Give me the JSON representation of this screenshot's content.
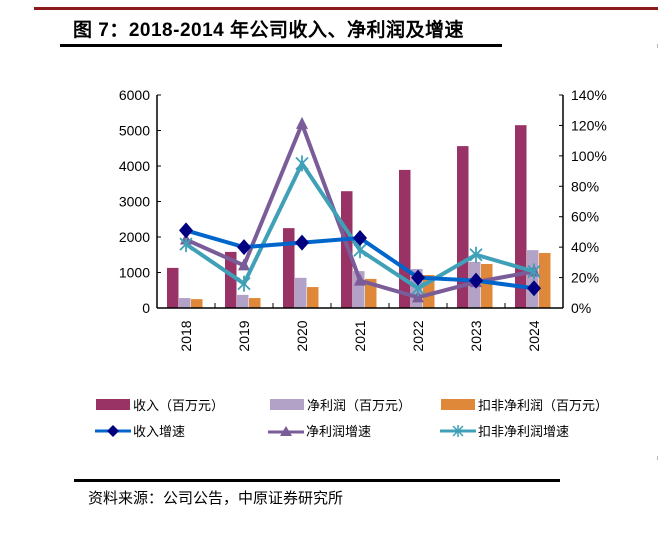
{
  "figure": {
    "title": "图 7：2018-2014 年公司收入、净利润及增速",
    "source": "资料来源：公司公告，中原证券研究所"
  },
  "colors": {
    "revenue": "#993366",
    "net_profit": "#b3a2c7",
    "deducted_net_profit": "#e0883a",
    "revenue_growth": "#0066cc",
    "revenue_growth_marker": "#000080",
    "net_profit_growth": "#7a5c99",
    "deducted_growth": "#3fa0b8",
    "top_rule": "#8b1a1a"
  },
  "chart_data": {
    "type": "bar",
    "combo": "bar+line, dual axis",
    "title": "2018-2014 年公司收入、净利润及增速",
    "categories": [
      "2018",
      "2019",
      "2020",
      "2021",
      "2022",
      "2023",
      "2024"
    ],
    "y_left": {
      "label": "",
      "ylim": [
        0,
        6000
      ],
      "ticks": [
        "0",
        "1000",
        "2000",
        "3000",
        "4000",
        "5000",
        "6000"
      ],
      "tick_values": [
        0,
        1000,
        2000,
        3000,
        4000,
        5000,
        6000
      ]
    },
    "y_right": {
      "label": "",
      "ylim": [
        0,
        140
      ],
      "unit": "%",
      "ticks": [
        "0%",
        "20%",
        "40%",
        "60%",
        "80%",
        "100%",
        "120%",
        "140%"
      ],
      "tick_values": [
        0,
        20,
        40,
        60,
        80,
        100,
        120,
        140
      ]
    },
    "grid": false,
    "legend_position": "bottom",
    "series": [
      {
        "name": "收入（百万元）",
        "type": "bar",
        "axis": "left",
        "color_key": "revenue",
        "values": [
          1130,
          1580,
          2250,
          3290,
          3890,
          4560,
          5150
        ]
      },
      {
        "name": "净利润（百万元）",
        "type": "bar",
        "axis": "left",
        "color_key": "net_profit",
        "values": [
          280,
          370,
          850,
          1040,
          1100,
          1300,
          1630
        ]
      },
      {
        "name": "扣非净利润（百万元）",
        "type": "bar",
        "axis": "left",
        "color_key": "deducted_net_profit",
        "values": [
          250,
          280,
          590,
          820,
          930,
          1240,
          1550
        ]
      },
      {
        "name": "收入增速",
        "type": "line",
        "axis": "right",
        "marker": "diamond",
        "color_key": "revenue_growth",
        "values": [
          51,
          40,
          43,
          46,
          20,
          18,
          13
        ]
      },
      {
        "name": "净利润增速",
        "type": "line",
        "axis": "right",
        "marker": "triangle",
        "color_key": "net_profit_growth",
        "values": [
          45,
          28,
          121,
          18,
          7,
          17,
          24
        ]
      },
      {
        "name": "扣非净利润增速",
        "type": "line",
        "axis": "right",
        "marker": "star",
        "color_key": "deducted_growth",
        "values": [
          42,
          16,
          95,
          38,
          13,
          35,
          24
        ]
      }
    ]
  }
}
